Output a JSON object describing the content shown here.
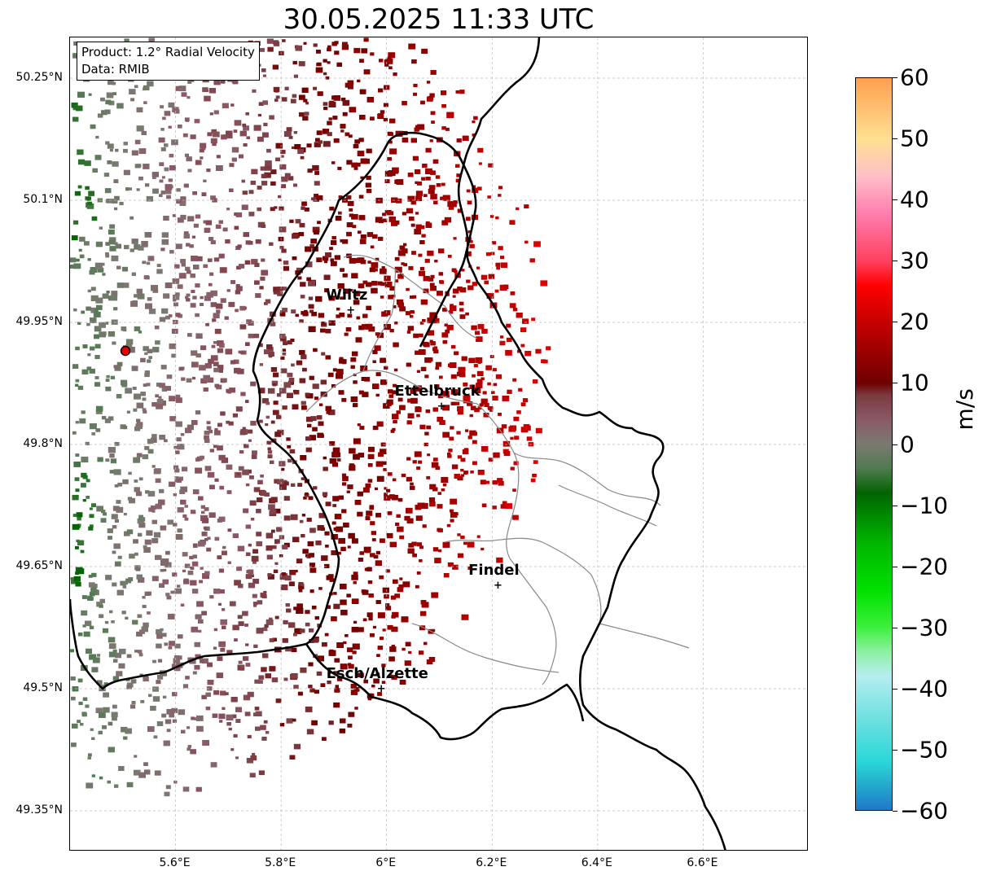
{
  "title": "30.05.2025 11:33 UTC",
  "info_box": {
    "product": "Product: 1.2° Radial Velocity",
    "data_source": "Data: RMIB"
  },
  "axes": {
    "lat_labels": [
      "50.25°N",
      "50.1°N",
      "49.95°N",
      "49.8°N",
      "49.65°N",
      "49.5°N",
      "49.35°N"
    ],
    "lon_labels": [
      "5.6°E",
      "5.8°E",
      "6°E",
      "6.2°E",
      "6.4°E",
      "6.6°E"
    ],
    "lat_values": [
      50.25,
      50.1,
      49.95,
      49.8,
      49.65,
      49.5,
      49.35
    ],
    "lon_values": [
      5.6,
      5.8,
      6.0,
      6.2,
      6.4,
      6.6
    ],
    "lat_range": [
      49.3,
      50.3
    ],
    "lon_range": [
      5.4,
      6.8
    ],
    "grid": true
  },
  "cities": [
    {
      "name": "Wiltz",
      "lat": 49.965,
      "lon": 5.932
    },
    {
      "name": "Ettelbruck",
      "lat": 49.847,
      "lon": 6.104
    },
    {
      "name": "Findel",
      "lat": 49.627,
      "lon": 6.211
    },
    {
      "name": "Esch/Alzette",
      "lat": 49.5,
      "lon": 5.99
    }
  ],
  "radar_site": {
    "lat": 49.915,
    "lon": 5.505,
    "color": "#e60000"
  },
  "colorbar": {
    "unit": "m/s",
    "min": -60,
    "max": 60,
    "tick_labels": [
      "60",
      "50",
      "40",
      "30",
      "20",
      "10",
      "0",
      "−10",
      "−20",
      "−30",
      "−40",
      "−50",
      "−60"
    ],
    "tick_values": [
      60,
      50,
      40,
      30,
      20,
      10,
      0,
      -10,
      -20,
      -30,
      -40,
      -50,
      -60
    ],
    "color_stops": [
      {
        "value": -60,
        "color": "#1f78c8"
      },
      {
        "value": -56,
        "color": "#22a9cc"
      },
      {
        "value": -52,
        "color": "#2ad8d8"
      },
      {
        "value": -45,
        "color": "#6ee0e0"
      },
      {
        "value": -38,
        "color": "#b5eef0"
      },
      {
        "value": -34,
        "color": "#8cf0a0"
      },
      {
        "value": -30,
        "color": "#3cf03c"
      },
      {
        "value": -24,
        "color": "#00e000"
      },
      {
        "value": -16,
        "color": "#00b400"
      },
      {
        "value": -8,
        "color": "#006400"
      },
      {
        "value": -4,
        "color": "#507a50"
      },
      {
        "value": 0,
        "color": "#7a7a72"
      },
      {
        "value": 4,
        "color": "#8a5a66"
      },
      {
        "value": 8,
        "color": "#7a3a40"
      },
      {
        "value": 10,
        "color": "#700000"
      },
      {
        "value": 18,
        "color": "#b40000"
      },
      {
        "value": 26,
        "color": "#ff0000"
      },
      {
        "value": 30,
        "color": "#ff4060"
      },
      {
        "value": 38,
        "color": "#ff80b0"
      },
      {
        "value": 44,
        "color": "#ffc0c8"
      },
      {
        "value": 50,
        "color": "#ffe090"
      },
      {
        "value": 60,
        "color": "#ffa050"
      }
    ]
  },
  "map_colors": {
    "border": "#000000",
    "admin": "#888888",
    "grid": "#bbbbbb"
  }
}
